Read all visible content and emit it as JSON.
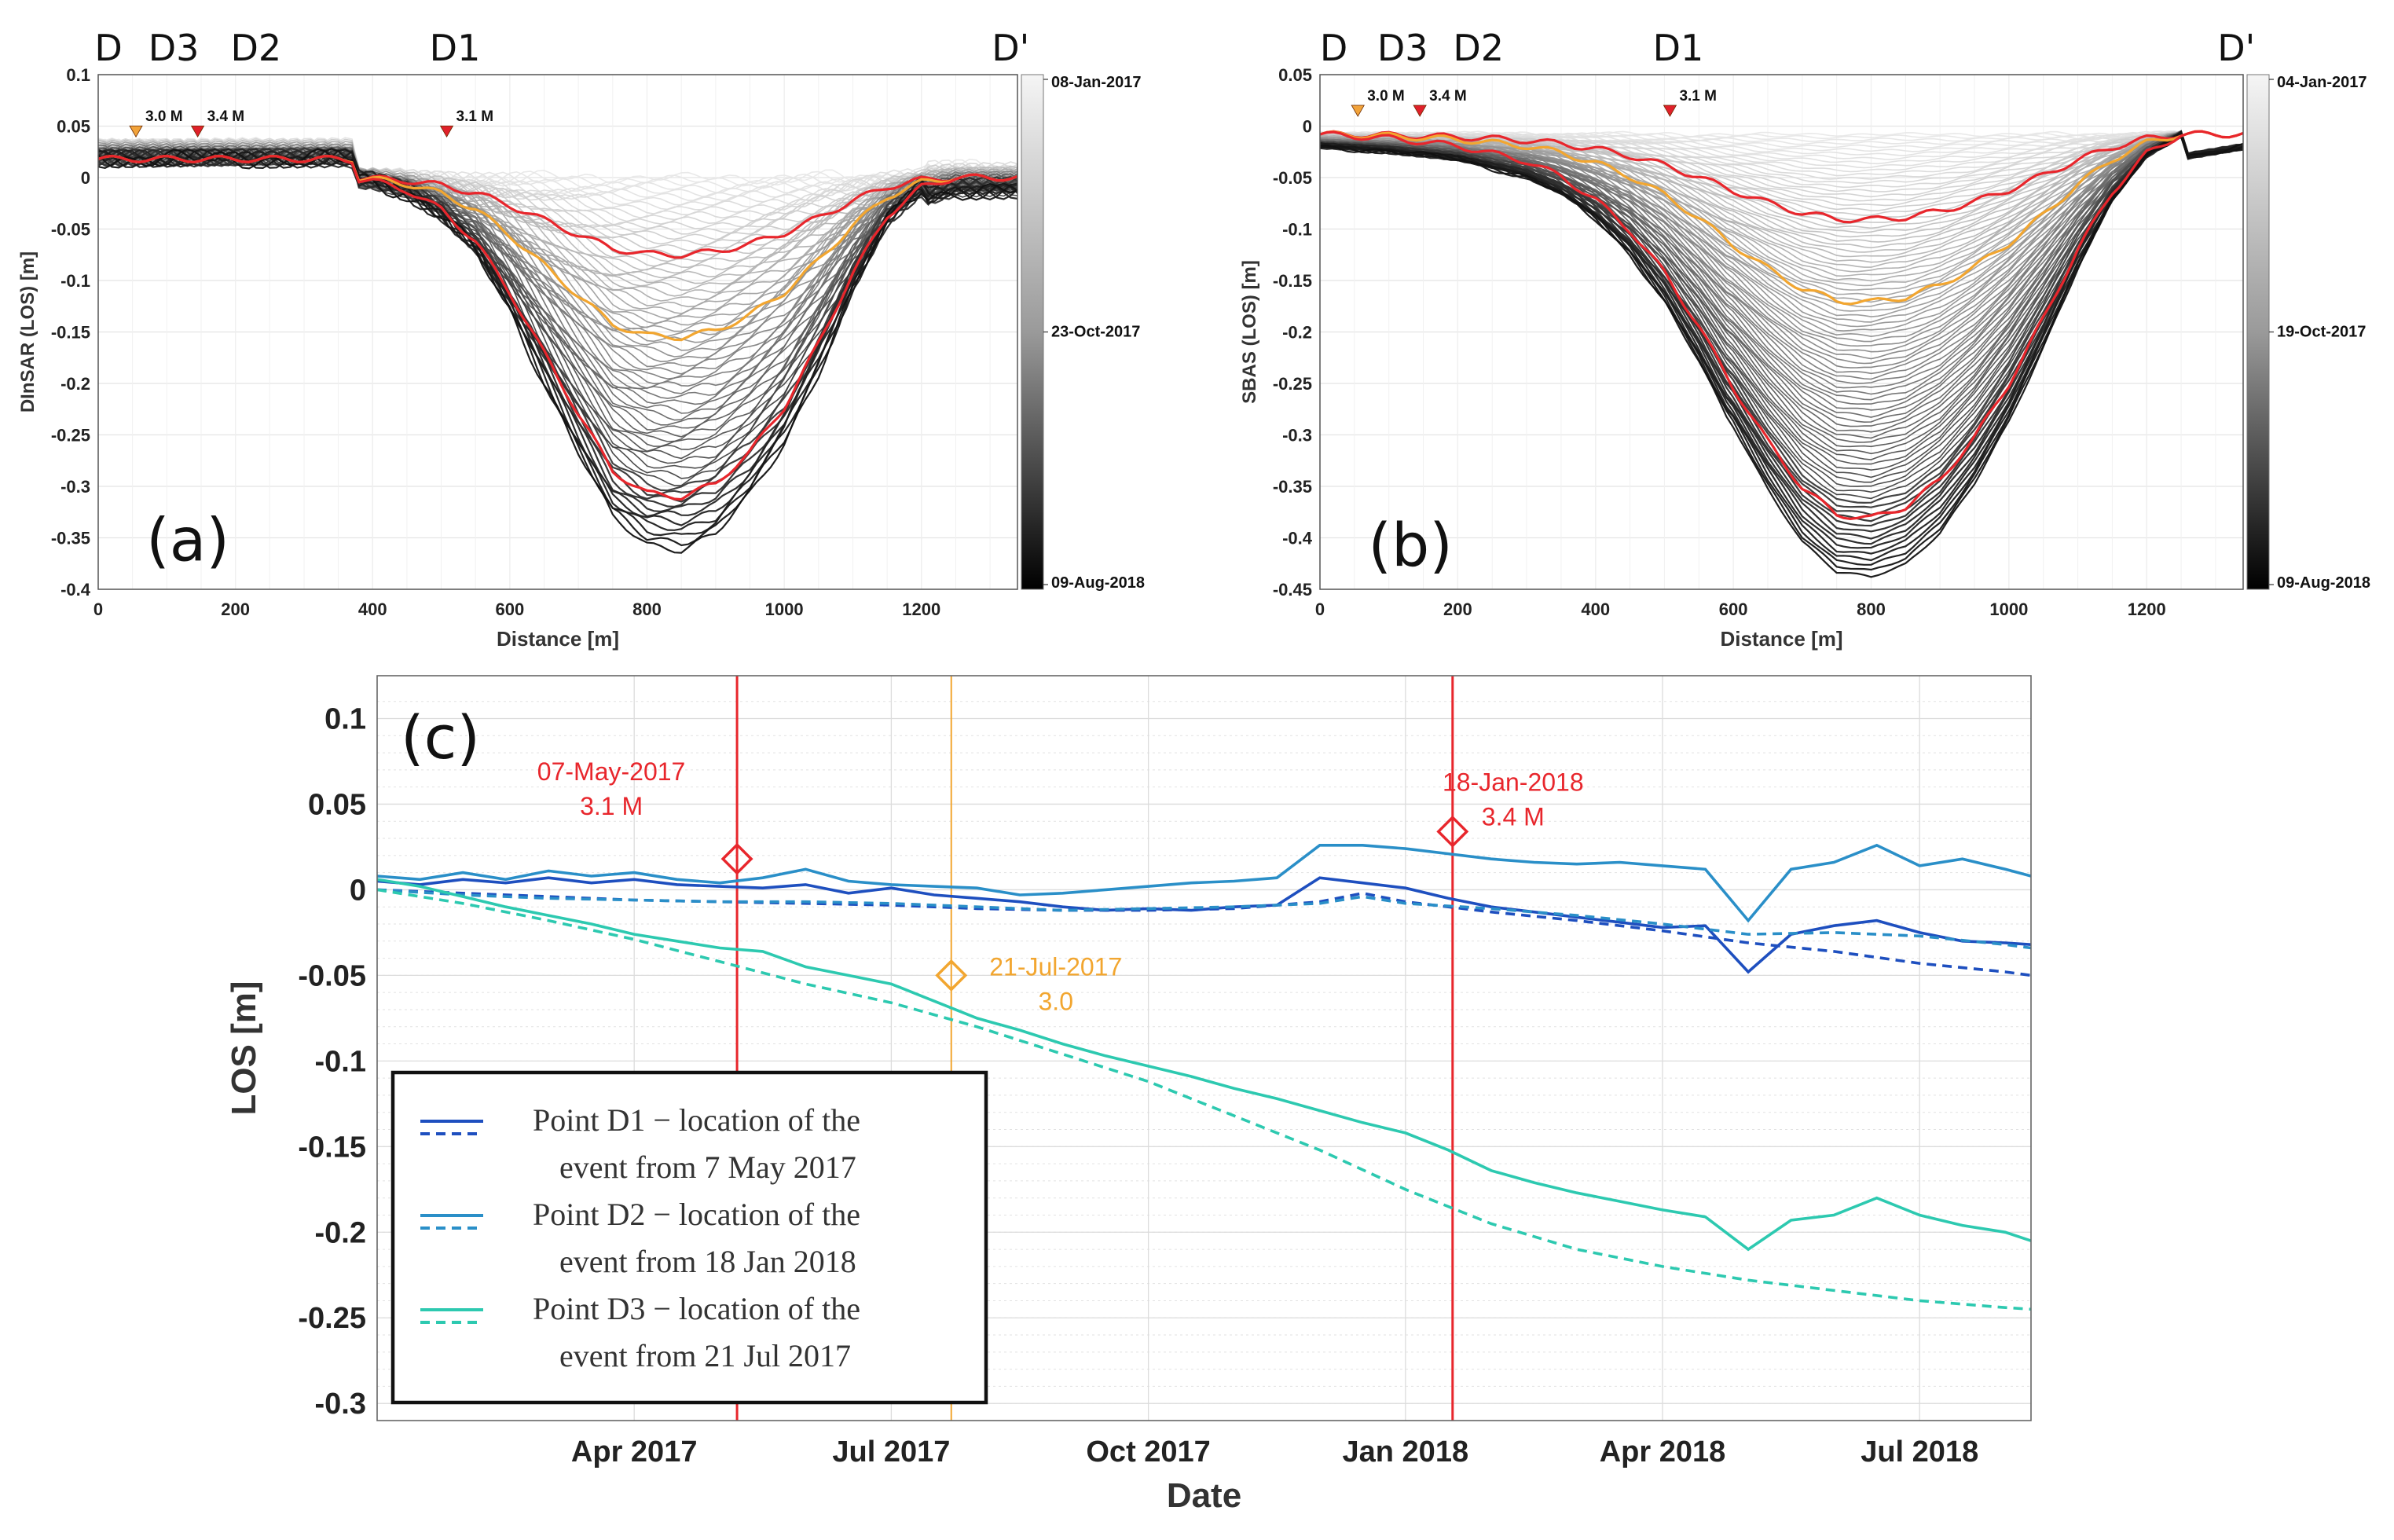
{
  "chart_data": [
    {
      "id": "a",
      "type": "line",
      "panel_label": "(a)",
      "ylabel": "DInSAR (LOS) [m]",
      "xlabel": "Distance [m]",
      "xlim": [
        0,
        1340
      ],
      "ylim": [
        -0.4,
        0.1
      ],
      "xticks": [
        "0",
        "200",
        "400",
        "600",
        "800",
        "1000",
        "1200"
      ],
      "xtick_values": [
        0,
        200,
        400,
        600,
        800,
        1000,
        1200
      ],
      "yticks": [
        "0.1",
        "0.05",
        "0",
        "-0.05",
        "-0.1",
        "-0.15",
        "-0.2",
        "-0.25",
        "-0.3",
        "-0.35",
        "-0.4"
      ],
      "ytick_values": [
        0.1,
        0.05,
        0,
        -0.05,
        -0.1,
        -0.15,
        -0.2,
        -0.25,
        -0.3,
        -0.35,
        -0.4
      ],
      "point_labels": [
        {
          "label": "D",
          "x": 15
        },
        {
          "label": "D3",
          "x": 110
        },
        {
          "label": "D2",
          "x": 230
        },
        {
          "label": "D1",
          "x": 520
        },
        {
          "label": "D'",
          "x": 1330
        }
      ],
      "magnitudes": [
        {
          "label": "3.0 M",
          "x": 55,
          "y": 0.038,
          "color": "#f2a33a"
        },
        {
          "label": "3.4 M",
          "x": 145,
          "y": 0.038,
          "color": "#e0202a"
        },
        {
          "label": "3.1 M",
          "x": 508,
          "y": 0.038,
          "color": "#e0202a"
        }
      ],
      "colorbar": {
        "labels": [
          "08-Jan-2017",
          "23-Oct-2017",
          "09-Aug-2018"
        ],
        "from": "#f5f5f5",
        "to": "#000000"
      },
      "profile": {
        "x": [
          0,
          100,
          200,
          300,
          350,
          400,
          450,
          500,
          550,
          600,
          650,
          700,
          750,
          800,
          850,
          900,
          950,
          1000,
          1050,
          1100,
          1150,
          1200,
          1250,
          1300,
          1340
        ],
        "shape": [
          0,
          0,
          0,
          0,
          0,
          0.01,
          0.04,
          0.1,
          0.2,
          0.36,
          0.55,
          0.74,
          0.92,
          0.99,
          1.0,
          0.96,
          0.86,
          0.72,
          0.52,
          0.3,
          0.12,
          0.03,
          0,
          0,
          0
        ],
        "highlights": [
          {
            "name": "red-early",
            "color": "#e8262c",
            "depth": -0.075
          },
          {
            "name": "orange",
            "color": "#f2a630",
            "depth": -0.155
          },
          {
            "name": "red-late",
            "color": "#e8262c",
            "depth": -0.31
          }
        ],
        "max_depth": -0.36,
        "n_profiles": 70
      }
    },
    {
      "id": "b",
      "type": "line",
      "panel_label": "(b)",
      "ylabel": "SBAS (LOS) [m]",
      "xlabel": "Distance [m]",
      "xlim": [
        0,
        1340
      ],
      "ylim": [
        -0.45,
        0.05
      ],
      "xticks": [
        "0",
        "200",
        "400",
        "600",
        "800",
        "1000",
        "1200"
      ],
      "xtick_values": [
        0,
        200,
        400,
        600,
        800,
        1000,
        1200
      ],
      "yticks": [
        "0.05",
        "0",
        "-0.05",
        "-0.1",
        "-0.15",
        "-0.2",
        "-0.25",
        "-0.3",
        "-0.35",
        "-0.4",
        "-0.45"
      ],
      "ytick_values": [
        0.05,
        0,
        -0.05,
        -0.1,
        -0.15,
        -0.2,
        -0.25,
        -0.3,
        -0.35,
        -0.4,
        -0.45
      ],
      "point_labels": [
        {
          "label": "D",
          "x": 20
        },
        {
          "label": "D3",
          "x": 120
        },
        {
          "label": "D2",
          "x": 230
        },
        {
          "label": "D1",
          "x": 520
        },
        {
          "label": "D'",
          "x": 1330
        }
      ],
      "magnitudes": [
        {
          "label": "3.0 M",
          "x": 55,
          "y": 0.008,
          "color": "#f2a33a"
        },
        {
          "label": "3.4 M",
          "x": 145,
          "y": 0.008,
          "color": "#e0202a"
        },
        {
          "label": "3.1 M",
          "x": 508,
          "y": 0.008,
          "color": "#e0202a"
        }
      ],
      "colorbar": {
        "labels": [
          "04-Jan-2017",
          "19-Oct-2017",
          "09-Aug-2018"
        ],
        "from": "#f5f5f5",
        "to": "#000000"
      },
      "profile": {
        "x": [
          0,
          100,
          200,
          300,
          350,
          400,
          450,
          500,
          550,
          600,
          650,
          700,
          750,
          800,
          850,
          900,
          950,
          1000,
          1050,
          1100,
          1150,
          1200,
          1250,
          1300,
          1340
        ],
        "shape": [
          0,
          0.01,
          0.03,
          0.07,
          0.11,
          0.17,
          0.25,
          0.36,
          0.5,
          0.66,
          0.8,
          0.92,
          0.99,
          1.0,
          0.97,
          0.9,
          0.79,
          0.65,
          0.48,
          0.3,
          0.15,
          0.05,
          0,
          0,
          0
        ],
        "highlights": [
          {
            "name": "red-early",
            "color": "#e8262c",
            "depth": -0.083
          },
          {
            "name": "orange",
            "color": "#f2a630",
            "depth": -0.163
          },
          {
            "name": "red-late",
            "color": "#e8262c",
            "depth": -0.373
          }
        ],
        "max_depth": -0.43,
        "n_profiles": 90
      }
    },
    {
      "id": "c",
      "type": "line",
      "panel_label": "(c)",
      "ylabel": "LOS [m]",
      "xlabel": "Date",
      "xlim": [
        0,
        19.3
      ],
      "ylim": [
        -0.31,
        0.125
      ],
      "xticks": [
        "Apr 2017",
        "Jul 2017",
        "Oct 2017",
        "Jan 2018",
        "Apr 2018",
        "Jul 2018"
      ],
      "xtick_values": [
        3,
        6,
        9,
        12,
        15,
        18
      ],
      "yticks": [
        "0.1",
        "0.05",
        "0",
        "-0.05",
        "-0.1",
        "-0.15",
        "-0.2",
        "-0.25",
        "-0.3"
      ],
      "ytick_values": [
        0.1,
        0.05,
        0,
        -0.05,
        -0.1,
        -0.15,
        -0.2,
        -0.25,
        -0.3
      ],
      "events": [
        {
          "date": "07-May-2017",
          "mag": "3.1 M",
          "x": 4.2,
          "marker_y": 0.018,
          "color": "#e8262c"
        },
        {
          "date": "18-Jan-2018",
          "mag": "3.4 M",
          "x": 12.55,
          "marker_y": 0.034,
          "color": "#e8262c"
        },
        {
          "date": "21-Jul-2017",
          "mag": "3.0",
          "x": 6.7,
          "marker_y": -0.05,
          "color": "#f2a630"
        }
      ],
      "series": [
        {
          "name": "D1 DInSAR",
          "color": "#1e4fbf",
          "dash": false,
          "x": [
            0,
            0.5,
            1,
            1.5,
            2,
            2.5,
            3,
            3.5,
            4,
            4.5,
            5,
            5.5,
            6,
            6.5,
            7,
            7.5,
            8,
            8.5,
            9,
            9.5,
            10,
            10.5,
            11,
            11.5,
            12,
            12.5,
            13,
            13.5,
            14,
            14.5,
            15,
            15.5,
            16,
            16.5,
            17,
            17.5,
            18,
            18.5,
            19,
            19.3
          ],
          "y": [
            0.005,
            0.003,
            0.006,
            0.004,
            0.007,
            0.004,
            0.006,
            0.003,
            0.002,
            0.001,
            0.003,
            -0.002,
            0.001,
            -0.003,
            -0.005,
            -0.007,
            -0.01,
            -0.012,
            -0.011,
            -0.012,
            -0.01,
            -0.009,
            0.007,
            0.004,
            0.001,
            -0.005,
            -0.01,
            -0.013,
            -0.016,
            -0.019,
            -0.022,
            -0.021,
            -0.048,
            -0.026,
            -0.021,
            -0.018,
            -0.025,
            -0.03,
            -0.031,
            -0.032
          ]
        },
        {
          "name": "D1 SBAS",
          "color": "#1e4fbf",
          "dash": true,
          "x": [
            0,
            1,
            2,
            3,
            4,
            5,
            6,
            7,
            8,
            9,
            10,
            11,
            11.5,
            12,
            13,
            14,
            15,
            16,
            17,
            18,
            19,
            19.3
          ],
          "y": [
            0,
            -0.002,
            -0.004,
            -0.006,
            -0.007,
            -0.008,
            -0.009,
            -0.011,
            -0.012,
            -0.012,
            -0.011,
            -0.007,
            -0.002,
            -0.007,
            -0.013,
            -0.018,
            -0.024,
            -0.031,
            -0.036,
            -0.043,
            -0.048,
            -0.05
          ]
        },
        {
          "name": "D2 DInSAR",
          "color": "#2a8fc8",
          "dash": false,
          "x": [
            0,
            0.5,
            1,
            1.5,
            2,
            2.5,
            3,
            3.5,
            4,
            4.5,
            5,
            5.5,
            6,
            6.5,
            7,
            7.5,
            8,
            8.5,
            9,
            9.5,
            10,
            10.5,
            11,
            11.5,
            12,
            12.5,
            13,
            13.5,
            14,
            14.5,
            15,
            15.5,
            16,
            16.5,
            17,
            17.5,
            18,
            18.5,
            19,
            19.3
          ],
          "y": [
            0.008,
            0.006,
            0.01,
            0.006,
            0.011,
            0.008,
            0.01,
            0.006,
            0.004,
            0.007,
            0.012,
            0.005,
            0.003,
            0.002,
            0.001,
            -0.003,
            -0.002,
            0.0,
            0.002,
            0.004,
            0.005,
            0.007,
            0.026,
            0.026,
            0.024,
            0.021,
            0.018,
            0.016,
            0.015,
            0.016,
            0.014,
            0.012,
            -0.018,
            0.012,
            0.016,
            0.026,
            0.014,
            0.018,
            0.012,
            0.008
          ]
        },
        {
          "name": "D2 SBAS",
          "color": "#2a8fc8",
          "dash": true,
          "x": [
            0,
            1,
            2,
            3,
            4,
            5,
            6,
            7,
            8,
            9,
            10,
            11,
            11.5,
            12,
            13,
            14,
            15,
            16,
            17,
            18,
            19,
            19.3
          ],
          "y": [
            0,
            -0.003,
            -0.005,
            -0.006,
            -0.007,
            -0.007,
            -0.008,
            -0.01,
            -0.012,
            -0.011,
            -0.01,
            -0.008,
            -0.004,
            -0.008,
            -0.011,
            -0.015,
            -0.02,
            -0.026,
            -0.025,
            -0.027,
            -0.032,
            -0.034
          ]
        },
        {
          "name": "D3 DInSAR",
          "color": "#2dc9b0",
          "dash": false,
          "x": [
            0,
            0.5,
            1,
            1.5,
            2,
            2.5,
            3,
            3.5,
            4,
            4.5,
            5,
            5.5,
            6,
            6.5,
            7,
            7.5,
            8,
            8.5,
            9,
            9.5,
            10,
            10.5,
            11,
            11.5,
            12,
            12.5,
            13,
            13.5,
            14,
            14.5,
            15,
            15.5,
            16,
            16.5,
            17,
            17.5,
            18,
            18.5,
            19,
            19.3
          ],
          "y": [
            0.006,
            0.002,
            -0.004,
            -0.01,
            -0.015,
            -0.02,
            -0.026,
            -0.03,
            -0.034,
            -0.036,
            -0.045,
            -0.05,
            -0.055,
            -0.065,
            -0.075,
            -0.082,
            -0.09,
            -0.097,
            -0.103,
            -0.109,
            -0.116,
            -0.122,
            -0.129,
            -0.136,
            -0.142,
            -0.152,
            -0.164,
            -0.171,
            -0.177,
            -0.182,
            -0.187,
            -0.191,
            -0.21,
            -0.193,
            -0.19,
            -0.18,
            -0.19,
            -0.196,
            -0.2,
            -0.205
          ]
        },
        {
          "name": "D3 SBAS",
          "color": "#2dc9b0",
          "dash": true,
          "x": [
            0,
            1,
            2,
            3,
            4,
            5,
            6,
            7,
            8,
            9,
            10,
            11,
            12,
            13,
            14,
            15,
            16,
            17,
            18,
            19,
            19.3
          ],
          "y": [
            0,
            -0.008,
            -0.018,
            -0.029,
            -0.042,
            -0.055,
            -0.066,
            -0.08,
            -0.096,
            -0.112,
            -0.132,
            -0.152,
            -0.175,
            -0.195,
            -0.21,
            -0.22,
            -0.228,
            -0.234,
            -0.24,
            -0.244,
            -0.245
          ]
        }
      ],
      "legend": [
        {
          "color": "#1e4fbf",
          "line1": "Point D1 −  location of the",
          "line2": "event from 7 May 2017"
        },
        {
          "color": "#2a8fc8",
          "line1": "Point D2 −  location of the",
          "line2": "event from 18 Jan 2018"
        },
        {
          "color": "#2dc9b0",
          "line1": "Point D3 −  location of the",
          "line2": "event from 21 Jul 2017"
        }
      ]
    }
  ]
}
